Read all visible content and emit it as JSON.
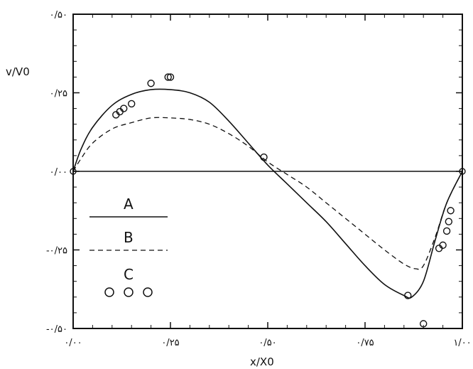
{
  "chart_data": {
    "type": "line",
    "xlabel": "x/X0",
    "ylabel": "v/V0",
    "xlim": [
      0.0,
      1.0
    ],
    "ylim": [
      -0.5,
      0.5
    ],
    "x_ticks": [
      {
        "value": 0.0,
        "label": "۰/۰۰"
      },
      {
        "value": 0.25,
        "label": "۰/۲۵"
      },
      {
        "value": 0.5,
        "label": "۰/۵۰"
      },
      {
        "value": 0.75,
        "label": "۰/۷۵"
      },
      {
        "value": 1.0,
        "label": "۱/۰۰"
      }
    ],
    "y_ticks": [
      {
        "value": 0.5,
        "label": "۰/۵۰"
      },
      {
        "value": 0.25,
        "label": "۰/۲۵"
      },
      {
        "value": 0.0,
        "label": "۰/۰۰"
      },
      {
        "value": -0.25,
        "label": "-۰/۲۵"
      },
      {
        "value": -0.5,
        "label": "-۰/۵۰"
      }
    ],
    "grid": false,
    "legend_position": "left-middle",
    "series": [
      {
        "name": "A",
        "style": "solid",
        "x": [
          0.0,
          0.02,
          0.05,
          0.1,
          0.15,
          0.2,
          0.25,
          0.3,
          0.35,
          0.4,
          0.45,
          0.5,
          0.55,
          0.6,
          0.65,
          0.7,
          0.75,
          0.8,
          0.85,
          0.87,
          0.9,
          0.93,
          0.96,
          1.0
        ],
        "y": [
          0.0,
          0.07,
          0.14,
          0.21,
          0.245,
          0.26,
          0.26,
          0.25,
          0.22,
          0.16,
          0.09,
          0.02,
          -0.04,
          -0.1,
          -0.16,
          -0.23,
          -0.3,
          -0.36,
          -0.395,
          -0.4,
          -0.35,
          -0.22,
          -0.1,
          0.0
        ]
      },
      {
        "name": "B",
        "style": "dashed",
        "x": [
          0.0,
          0.02,
          0.05,
          0.1,
          0.15,
          0.2,
          0.25,
          0.3,
          0.35,
          0.4,
          0.45,
          0.5,
          0.55,
          0.6,
          0.65,
          0.7,
          0.75,
          0.8,
          0.85,
          0.88,
          0.9,
          0.93,
          0.96,
          1.0
        ],
        "y": [
          0.0,
          0.04,
          0.09,
          0.135,
          0.155,
          0.17,
          0.17,
          0.165,
          0.15,
          0.12,
          0.08,
          0.03,
          -0.01,
          -0.05,
          -0.1,
          -0.15,
          -0.2,
          -0.25,
          -0.295,
          -0.31,
          -0.3,
          -0.21,
          -0.1,
          0.0
        ]
      },
      {
        "name": "C",
        "style": "markers",
        "x": [
          0.11,
          0.12,
          0.13,
          0.15,
          0.2,
          0.244,
          0.25,
          0.49,
          0.86,
          0.9,
          0.94,
          0.95,
          0.96,
          0.965,
          0.97
        ],
        "y": [
          0.18,
          0.19,
          0.2,
          0.215,
          0.28,
          0.3,
          0.3,
          0.045,
          -0.395,
          -0.485,
          -0.245,
          -0.235,
          -0.19,
          -0.16,
          -0.125
        ]
      },
      {
        "name": "",
        "style": "solid-zero",
        "x": [
          0.0,
          1.0
        ],
        "y": [
          0.0,
          0.0
        ]
      }
    ],
    "legend": [
      {
        "label": "A",
        "style": "solid"
      },
      {
        "label": "B",
        "style": "dashed"
      },
      {
        "label": "C",
        "style": "markers"
      }
    ]
  }
}
